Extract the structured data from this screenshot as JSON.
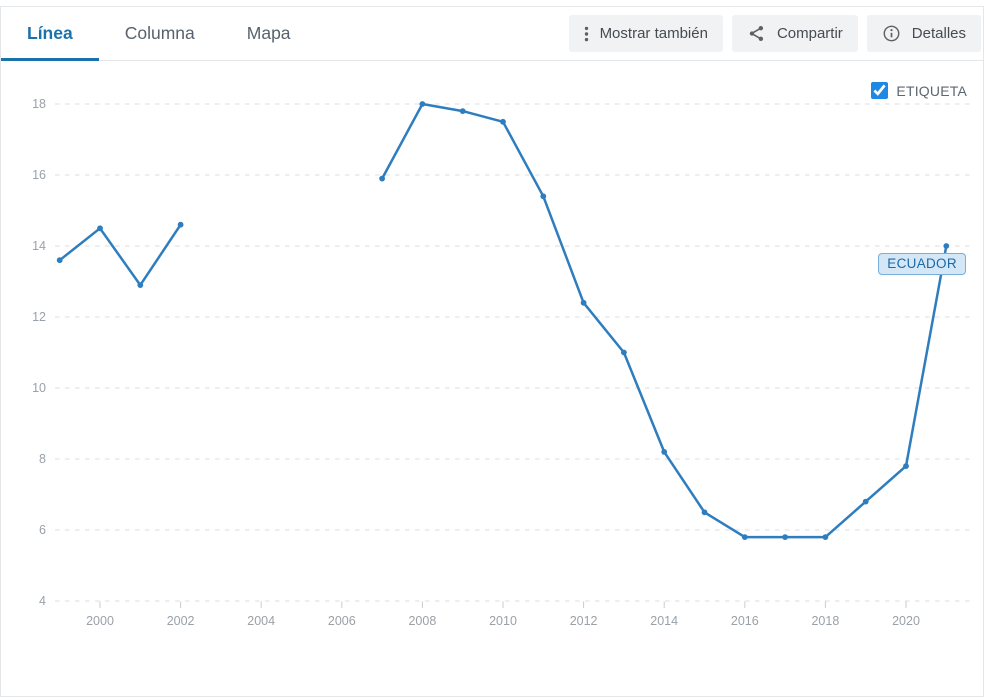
{
  "header": {
    "tabs": [
      {
        "label": "Línea",
        "active": true
      },
      {
        "label": "Columna",
        "active": false
      },
      {
        "label": "Mapa",
        "active": false
      }
    ],
    "buttons": {
      "show_also": "Mostrar también",
      "share": "Compartir",
      "details": "Detalles"
    }
  },
  "legend": {
    "label": "ETIQUETA",
    "checked": true
  },
  "colors": {
    "line": "#2e7dbe",
    "accent": "#1a72ad",
    "checkbox": "#1e88e5",
    "series_label_bg": "#d4e7f7",
    "series_label_border": "#79aed8",
    "series_label_text": "#1b6aa8"
  },
  "chart_data": {
    "type": "line",
    "title": "",
    "xlabel": "",
    "ylabel": "",
    "x": [
      1999,
      2000,
      2001,
      2002,
      2003,
      2004,
      2005,
      2006,
      2007,
      2008,
      2009,
      2010,
      2011,
      2012,
      2013,
      2014,
      2015,
      2016,
      2017,
      2018,
      2019,
      2020,
      2021
    ],
    "series": [
      {
        "name": "ECUADOR",
        "values": [
          13.6,
          14.5,
          12.9,
          14.6,
          null,
          null,
          null,
          null,
          15.9,
          18,
          17.8,
          17.5,
          15.4,
          12.4,
          11,
          8.2,
          6.5,
          5.8,
          5.8,
          5.8,
          6.8,
          7.8,
          14
        ]
      }
    ],
    "ylim": [
      4,
      18
    ],
    "yticks": [
      4,
      6,
      8,
      10,
      12,
      14,
      16,
      18
    ],
    "xticks": [
      2000,
      2002,
      2004,
      2006,
      2008,
      2010,
      2012,
      2014,
      2016,
      2018,
      2020
    ],
    "grid": true,
    "grid_style": "dashed-horizontal",
    "markers": true,
    "legend_position": "top-right",
    "point_label": "ECUADOR"
  }
}
